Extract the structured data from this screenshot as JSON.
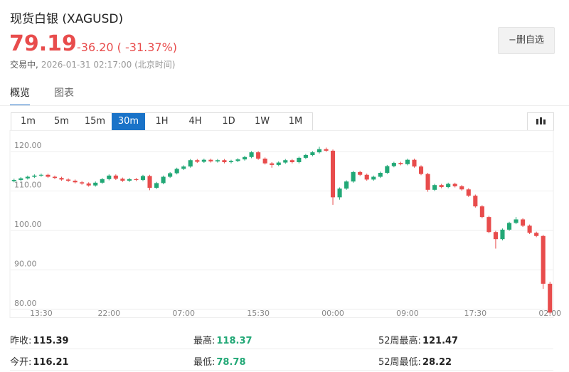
{
  "header": {
    "title": "现货白银 (XAGUSD)",
    "price": "79.19",
    "change": "-36.20",
    "change_pct": "( -31.37%)",
    "status": "交易中,",
    "time": "2026-01-31 02:17:00 (北京时间)",
    "button": "−删自选"
  },
  "tabs": [
    "概览",
    "图表"
  ],
  "intervals": {
    "items": [
      "1m",
      "5m",
      "15m",
      "30m",
      "1H",
      "4H",
      "1D",
      "1W",
      "1M"
    ],
    "active": 3
  },
  "chart_data": {
    "type": "candlestick",
    "up_color": "#22a876",
    "down_color": "#e84c4c",
    "grid": true,
    "ylim": [
      78.5,
      123.3
    ],
    "yticks": [
      {
        "value": 80,
        "label": "80.00"
      },
      {
        "value": 90,
        "label": "90.00"
      },
      {
        "value": 100,
        "label": "100.00"
      },
      {
        "value": 110,
        "label": "110.00"
      },
      {
        "value": 120,
        "label": "120.00"
      }
    ],
    "categories": [
      null,
      null,
      null,
      null,
      "13:30",
      null,
      null,
      null,
      null,
      null,
      null,
      null,
      null,
      null,
      "22:00",
      null,
      null,
      null,
      null,
      null,
      null,
      null,
      null,
      null,
      null,
      "07:00",
      null,
      null,
      null,
      null,
      null,
      null,
      null,
      null,
      null,
      null,
      "15:30",
      null,
      null,
      null,
      null,
      null,
      null,
      null,
      null,
      null,
      null,
      "00:00",
      null,
      null,
      null,
      null,
      null,
      null,
      null,
      null,
      null,
      null,
      "09:00",
      null,
      null,
      null,
      null,
      null,
      null,
      null,
      null,
      null,
      "17:30",
      null,
      null,
      null,
      null,
      null,
      null,
      null,
      null,
      null,
      null,
      "02:00"
    ],
    "open": [
      112.5,
      112.8,
      113.2,
      113.6,
      113.9,
      114.1,
      113.6,
      113.3,
      112.9,
      112.6,
      112.2,
      111.9,
      111.4,
      112.1,
      113.0,
      113.9,
      113.1,
      112.6,
      113.0,
      112.8,
      113.8,
      110.8,
      112.0,
      113.6,
      114.5,
      115.6,
      116.2,
      117.8,
      117.4,
      117.9,
      117.5,
      117.8,
      117.3,
      117.6,
      118.0,
      118.6,
      119.8,
      118.2,
      117.0,
      116.6,
      117.2,
      117.8,
      117.3,
      118.4,
      119.1,
      119.8,
      120.6,
      120.2,
      108.4,
      110.6,
      112.4,
      114.8,
      114.1,
      112.9,
      113.6,
      114.6,
      116.3,
      117.1,
      116.8,
      117.9,
      116.2,
      114.3,
      110.3,
      111.5,
      111.0,
      111.8,
      111.2,
      110.4,
      108.8,
      106.1,
      103.4,
      99.6,
      97.8,
      100.2,
      101.9,
      102.8,
      101.2,
      99.4,
      98.6,
      86.5
    ],
    "high": [
      113.1,
      113.5,
      113.9,
      114.2,
      114.4,
      114.4,
      113.9,
      113.6,
      113.2,
      112.9,
      112.5,
      112.2,
      112.4,
      113.3,
      114.2,
      114.2,
      113.4,
      113.3,
      113.3,
      114.1,
      114.1,
      112.3,
      113.9,
      114.8,
      115.9,
      116.5,
      118.1,
      118.1,
      118.2,
      118.2,
      118.1,
      118.1,
      117.9,
      118.3,
      118.9,
      120.1,
      120.1,
      118.5,
      117.3,
      117.5,
      118.1,
      118.1,
      118.7,
      119.4,
      120.1,
      121.2,
      121.0,
      120.5,
      110.9,
      112.7,
      115.1,
      115.1,
      114.4,
      113.9,
      114.9,
      116.6,
      117.4,
      117.4,
      118.2,
      118.2,
      116.5,
      114.6,
      111.8,
      111.8,
      112.1,
      112.1,
      111.5,
      110.7,
      109.1,
      106.4,
      103.7,
      99.9,
      100.5,
      102.2,
      103.4,
      103.1,
      101.5,
      99.7,
      98.9,
      87.0
    ],
    "low": [
      112.2,
      112.5,
      112.9,
      113.3,
      113.6,
      113.3,
      113.0,
      112.6,
      112.3,
      111.9,
      111.6,
      111.1,
      111.1,
      111.8,
      112.7,
      112.8,
      112.3,
      112.3,
      112.5,
      112.5,
      110.2,
      110.5,
      111.7,
      113.3,
      114.2,
      115.3,
      115.9,
      117.1,
      117.1,
      117.2,
      117.2,
      117.0,
      117.0,
      117.3,
      117.7,
      118.3,
      117.9,
      116.7,
      115.9,
      116.3,
      116.9,
      117.0,
      117.0,
      118.1,
      118.8,
      119.5,
      119.9,
      106.5,
      107.8,
      110.3,
      112.1,
      113.8,
      112.6,
      112.6,
      113.3,
      114.3,
      116.0,
      116.5,
      116.5,
      115.9,
      114.0,
      109.8,
      110.0,
      110.7,
      110.7,
      110.9,
      110.1,
      108.5,
      105.8,
      103.1,
      99.3,
      95.4,
      97.5,
      99.9,
      101.6,
      100.9,
      99.1,
      98.3,
      85.2,
      78.78
    ],
    "close": [
      112.8,
      113.2,
      113.6,
      113.9,
      114.1,
      113.6,
      113.3,
      112.9,
      112.6,
      112.2,
      111.9,
      111.4,
      112.1,
      113.0,
      113.9,
      113.1,
      112.6,
      113.0,
      112.8,
      113.8,
      110.8,
      112.0,
      113.6,
      114.5,
      115.6,
      116.2,
      117.8,
      117.4,
      117.9,
      117.5,
      117.8,
      117.3,
      117.6,
      118.0,
      118.6,
      119.8,
      118.2,
      117.0,
      116.6,
      117.2,
      117.8,
      117.3,
      118.4,
      119.1,
      119.8,
      120.6,
      120.2,
      108.4,
      110.6,
      112.4,
      114.8,
      114.1,
      112.9,
      113.6,
      114.6,
      116.3,
      117.1,
      116.8,
      117.9,
      116.2,
      114.3,
      110.3,
      111.5,
      111.0,
      111.8,
      111.2,
      110.4,
      108.8,
      106.1,
      103.4,
      99.6,
      97.8,
      100.2,
      101.9,
      102.8,
      101.2,
      99.4,
      98.6,
      86.5,
      79.19
    ]
  },
  "stats": [
    [
      {
        "label": "昨收:",
        "value": "115.39"
      },
      {
        "label": "最高:",
        "value": "118.37"
      },
      {
        "label": "52周最高:",
        "value": "121.47"
      }
    ],
    [
      {
        "label": "今开:",
        "value": "116.21"
      },
      {
        "label": "最低:",
        "value": "78.78"
      },
      {
        "label": "52周最低:",
        "value": "28.22"
      }
    ]
  ]
}
